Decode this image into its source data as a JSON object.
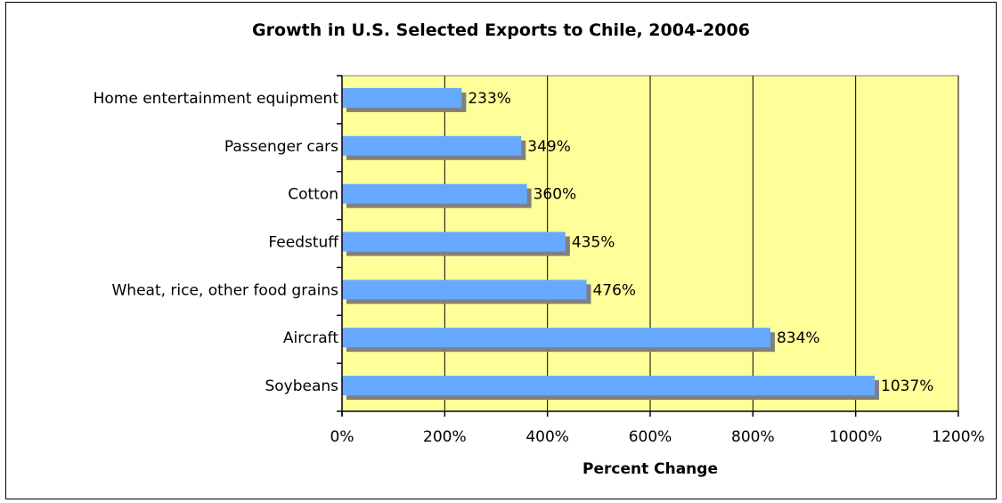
{
  "chart_data": {
    "type": "bar",
    "orientation": "horizontal",
    "title": "Growth in U.S. Selected Exports to Chile, 2004-2006",
    "xlabel": "Percent Change",
    "ylabel": "",
    "categories": [
      "Home entertainment equipment",
      "Passenger cars",
      "Cotton",
      "Feedstuff",
      "Wheat, rice, other food grains",
      "Aircraft",
      "Soybeans"
    ],
    "values": [
      233,
      349,
      360,
      435,
      476,
      834,
      1037
    ],
    "data_labels": [
      "233%",
      "349%",
      "360%",
      "435%",
      "476%",
      "834%",
      "1037%"
    ],
    "xlim": [
      0,
      1200
    ],
    "x_ticks": [
      0,
      200,
      400,
      600,
      800,
      1000,
      1200
    ],
    "x_tick_labels": [
      "0%",
      "200%",
      "400%",
      "600%",
      "800%",
      "1000%",
      "1200%"
    ],
    "grid": "vertical",
    "legend": "none",
    "colors": {
      "bar": "#66aaff",
      "bar_shadow": "#808080",
      "plot_background": "#ffff99",
      "gridline": "#000000"
    }
  }
}
